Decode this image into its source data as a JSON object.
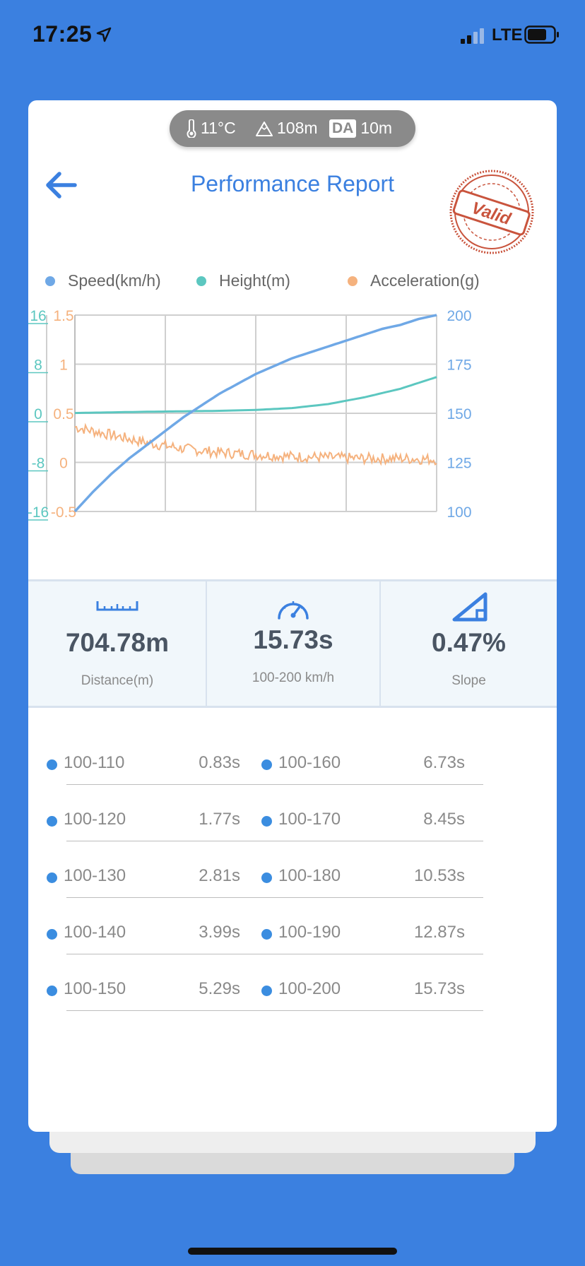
{
  "status_bar": {
    "time": "17:25",
    "network": "LTE"
  },
  "conditions": {
    "temperature": "11°C",
    "altitude": "108m",
    "da_label": "DA",
    "density_altitude": "10m"
  },
  "header": {
    "title": "Performance Report",
    "stamp_text": "Valid"
  },
  "legend": [
    {
      "label": "Speed(km/h)",
      "color": "#6fa8e6"
    },
    {
      "label": "Height(m)",
      "color": "#5cc7c0"
    },
    {
      "label": "Acceleration(g)",
      "color": "#f5b27e"
    }
  ],
  "chart_data": {
    "type": "line",
    "series": [
      {
        "name": "Speed(km/h)",
        "color": "#6fa8e6",
        "axis": "right",
        "x": [
          0,
          0.05,
          0.1,
          0.15,
          0.2,
          0.25,
          0.3,
          0.35,
          0.4,
          0.45,
          0.5,
          0.55,
          0.6,
          0.65,
          0.7,
          0.75,
          0.8,
          0.85,
          0.9,
          0.95,
          1.0
        ],
        "y": [
          100,
          110,
          119,
          127,
          134,
          141,
          148,
          154,
          160,
          165,
          170,
          174,
          178,
          181,
          184,
          187,
          190,
          193,
          195,
          198,
          200
        ]
      },
      {
        "name": "Height(m)",
        "color": "#5cc7c0",
        "axis": "left-outer",
        "x": [
          0,
          0.2,
          0.4,
          0.5,
          0.6,
          0.7,
          0.8,
          0.9,
          1.0
        ],
        "y": [
          0.05,
          0.25,
          0.4,
          0.55,
          0.85,
          1.5,
          2.6,
          4.0,
          5.9
        ]
      },
      {
        "name": "Acceleration(g)",
        "color": "#f5b27e",
        "axis": "left-inner",
        "x": [
          0,
          0.1,
          0.2,
          0.3,
          0.4,
          0.5,
          0.6,
          0.7,
          0.8,
          0.9,
          1.0
        ],
        "y": [
          0.36,
          0.28,
          0.2,
          0.14,
          0.1,
          0.08,
          0.06,
          0.05,
          0.04,
          0.04,
          0.03
        ]
      }
    ],
    "axes": {
      "left_outer": {
        "ticks": [
          "16",
          "8",
          "0",
          "-8",
          "-16"
        ],
        "range": [
          -16,
          16
        ],
        "color": "#5cc7c0"
      },
      "left_inner": {
        "ticks": [
          "1.5",
          "1",
          "0.5",
          "0",
          "-0.5"
        ],
        "range": [
          -0.5,
          1.5
        ],
        "color": "#f5b27e"
      },
      "right": {
        "ticks": [
          "200",
          "175",
          "150",
          "125",
          "100"
        ],
        "range": [
          100,
          200
        ],
        "color": "#6fa8e6"
      }
    },
    "grid": true
  },
  "metrics": [
    {
      "value": "704.78m",
      "label": "Distance(m)",
      "icon": "ruler-icon"
    },
    {
      "value": "15.73s",
      "label": "100-200 km/h",
      "icon": "speedometer-icon"
    },
    {
      "value": "0.47%",
      "label": "Slope",
      "icon": "slope-icon"
    }
  ],
  "splits": [
    {
      "left": {
        "range": "100-110",
        "time": "0.83s"
      },
      "right": {
        "range": "100-160",
        "time": "6.73s"
      }
    },
    {
      "left": {
        "range": "100-120",
        "time": "1.77s"
      },
      "right": {
        "range": "100-170",
        "time": "8.45s"
      }
    },
    {
      "left": {
        "range": "100-130",
        "time": "2.81s"
      },
      "right": {
        "range": "100-180",
        "time": "10.53s"
      }
    },
    {
      "left": {
        "range": "100-140",
        "time": "3.99s"
      },
      "right": {
        "range": "100-190",
        "time": "12.87s"
      }
    },
    {
      "left": {
        "range": "100-150",
        "time": "5.29s"
      },
      "right": {
        "range": "100-200",
        "time": "15.73s"
      }
    }
  ]
}
